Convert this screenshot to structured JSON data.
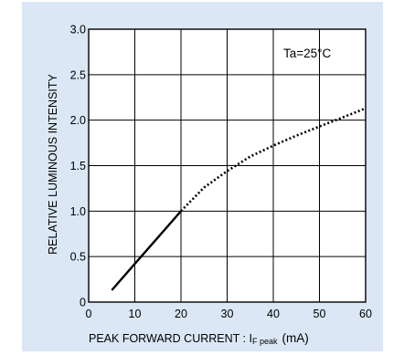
{
  "chart_data": {
    "type": "line",
    "title": "",
    "xlabel": "PEAK FORWARD CURRENT : I",
    "xlabel_subscript": "F peak",
    "xlabel_unit": "(mA)",
    "ylabel": "RELATIVE LUMINOUS INTENSITY",
    "xlim": [
      0,
      60
    ],
    "ylim": [
      0,
      3.0
    ],
    "x_ticks": [
      0,
      10,
      20,
      30,
      40,
      50,
      60
    ],
    "y_ticks": [
      0,
      0.5,
      1.0,
      1.5,
      2.0,
      2.5,
      3.0
    ],
    "x_tick_labels": [
      "0",
      "10",
      "20",
      "30",
      "40",
      "50",
      "60"
    ],
    "y_tick_labels": [
      "0",
      "0.5",
      "1.0",
      "1.5",
      "2.0",
      "2.5",
      "3.0"
    ],
    "grid": true,
    "annotation": "Ta=25°C",
    "annotation_position": "top-right",
    "colors": {
      "background": "#dbe7f5",
      "plot": "#ffffff",
      "line": "#000000"
    },
    "series": [
      {
        "style": "solid",
        "x": [
          5,
          10,
          15,
          20
        ],
        "y": [
          0.13,
          0.42,
          0.71,
          1.0
        ]
      },
      {
        "style": "dotted",
        "x": [
          20,
          25,
          30,
          35,
          40,
          45,
          50,
          55,
          60
        ],
        "y": [
          1.0,
          1.26,
          1.44,
          1.6,
          1.72,
          1.83,
          1.93,
          2.03,
          2.13
        ]
      }
    ]
  }
}
